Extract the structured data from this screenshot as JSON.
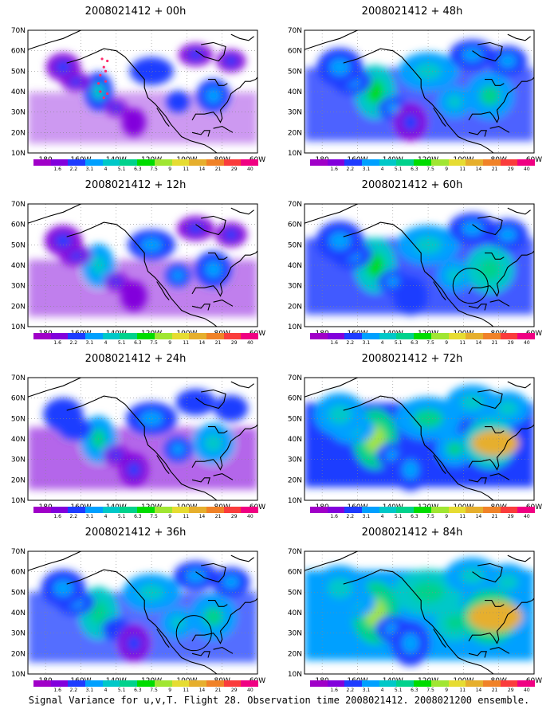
{
  "panels": [
    {
      "title": "2008021412 + 00h",
      "col": 0,
      "row": 0,
      "intensity": 0.15,
      "marker": "dots"
    },
    {
      "title": "2008021412 + 12h",
      "col": 0,
      "row": 1,
      "intensity": 0.25,
      "marker": "none"
    },
    {
      "title": "2008021412 + 24h",
      "col": 0,
      "row": 2,
      "intensity": 0.35,
      "marker": "none"
    },
    {
      "title": "2008021412 + 36h",
      "col": 0,
      "row": 3,
      "intensity": 0.5,
      "marker": "circle"
    },
    {
      "title": "2008021412 + 48h",
      "col": 1,
      "row": 0,
      "intensity": 0.55,
      "marker": "none"
    },
    {
      "title": "2008021412 + 60h",
      "col": 1,
      "row": 1,
      "intensity": 0.6,
      "marker": "circle"
    },
    {
      "title": "2008021412 + 72h",
      "col": 1,
      "row": 2,
      "intensity": 0.75,
      "marker": "none"
    },
    {
      "title": "2008021412 + 84h",
      "col": 1,
      "row": 3,
      "intensity": 0.85,
      "marker": "none"
    }
  ],
  "lat_labels": [
    "70N",
    "60N",
    "50N",
    "40N",
    "30N",
    "20N",
    "10N"
  ],
  "lon_labels": [
    "180",
    "160W",
    "140W",
    "120W",
    "100W",
    "80W",
    "60W"
  ],
  "legend": {
    "labels": [
      "1.6",
      "2.2",
      "3.1",
      "4",
      "5.1",
      "6.3",
      "7.5",
      "9",
      "11",
      "14",
      "21",
      "29",
      "40"
    ],
    "colors": [
      "#a000c8",
      "#8200dc",
      "#1e3cff",
      "#00a0ff",
      "#00c8c8",
      "#00d28c",
      "#00dc00",
      "#a0e632",
      "#e6dc32",
      "#e6af2d",
      "#f08228",
      "#fa3c3c",
      "#f00082"
    ]
  },
  "caption": "Signal Variance for u,v,T. Flight 28. Observation time 2008021412. 2008021200 ensemble."
}
